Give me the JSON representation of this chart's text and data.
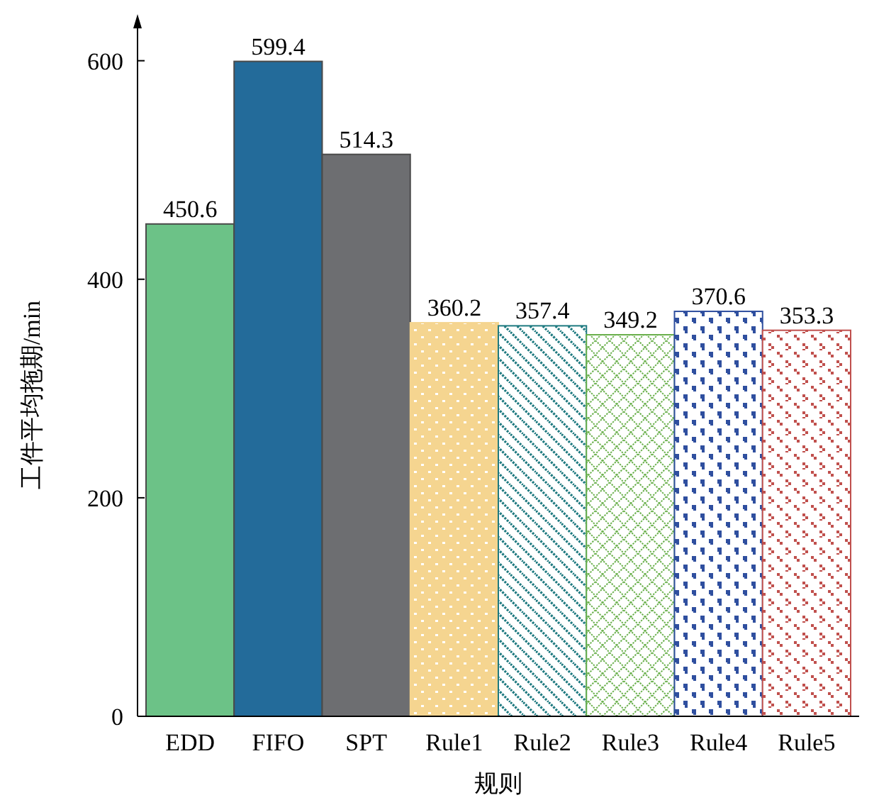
{
  "chart_data": {
    "type": "bar",
    "xlabel": "规则",
    "ylabel": "工件平均拖期/min",
    "categories": [
      "EDD",
      "FIFO",
      "SPT",
      "Rule1",
      "Rule2",
      "Rule3",
      "Rule4",
      "Rule5"
    ],
    "values": [
      450.6,
      599.4,
      514.3,
      360.2,
      357.4,
      349.2,
      370.6,
      353.3
    ],
    "colors": [
      "#6cc287",
      "#236b9a",
      "#6d6e71",
      "#f5d590",
      "#1f7a80",
      "#6ab04c",
      "#2f4f9f",
      "#c0504d"
    ],
    "ylim": [
      0,
      640
    ],
    "yticks": [
      0,
      200,
      400,
      600
    ],
    "data_labels": true
  }
}
